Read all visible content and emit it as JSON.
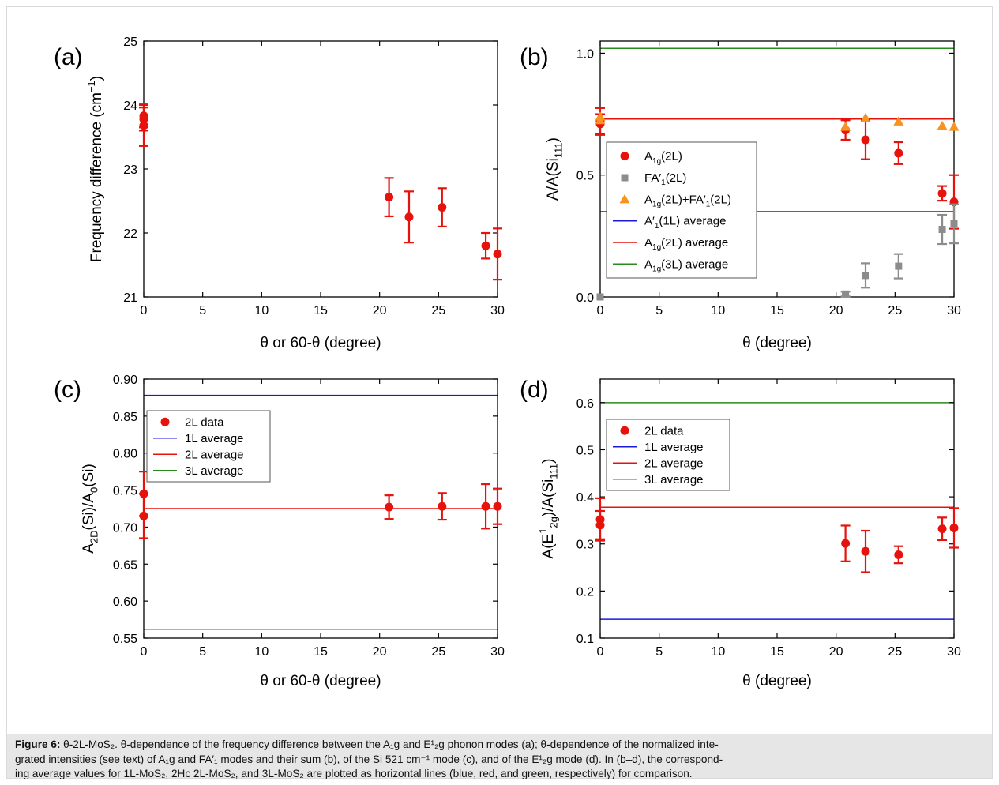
{
  "caption": {
    "label": "Figure 6:",
    "line1": " θ-2L-MoS₂. θ-dependence of the frequency difference between the A₁g and E¹₂g phonon modes (a); θ-dependence of the normalized inte-",
    "line2": "grated intensities (see text) of A₁g and FA′₁ modes and their sum (b), of the Si 521 cm⁻¹ mode (c), and of the E¹₂g mode (d). In (b–d), the correspond-",
    "line3": "ing average values for 1L-MoS₂, 2Hc 2L-MoS₂, and 3L-MoS₂ are plotted as horizontal lines (blue, red, and green, respectively) for comparison."
  },
  "colors": {
    "red": "#e8120c",
    "gray": "#8c8c8c",
    "orange": "#f7931e",
    "blue": "#1a1adc",
    "green": "#2a8a1e"
  },
  "chart_data": [
    {
      "panel": "(a)",
      "type": "scatter",
      "xlabel": "θ or 60-θ (degree)",
      "ylabel": "Frequency difference (cm⁻¹)",
      "xlim": [
        0,
        30
      ],
      "ylim": [
        21,
        25
      ],
      "xticks": [
        0,
        5,
        10,
        15,
        20,
        25,
        30
      ],
      "yticks": [
        21,
        22,
        23,
        24,
        25
      ],
      "ytick_labels": [
        "21",
        "22",
        "23",
        "24",
        "25"
      ],
      "grid": false,
      "series": [
        {
          "marker": "circle",
          "color": "red",
          "points": [
            {
              "x": 0,
              "y": 23.83,
              "err": 0.18
            },
            {
              "x": 0,
              "y": 23.78,
              "err": 0.18
            },
            {
              "x": 0,
              "y": 23.68,
              "err": 0.32
            },
            {
              "x": 20.8,
              "y": 22.56,
              "err": 0.3
            },
            {
              "x": 22.5,
              "y": 22.25,
              "err": 0.4
            },
            {
              "x": 25.3,
              "y": 22.4,
              "err": 0.3
            },
            {
              "x": 29,
              "y": 21.8,
              "err": 0.2
            },
            {
              "x": 30,
              "y": 21.67,
              "err": 0.4
            }
          ]
        }
      ],
      "hlines": [],
      "legend": []
    },
    {
      "panel": "(b)",
      "type": "scatter",
      "xlabel": "θ (degree)",
      "ylabel": "A/A(Si₁₁₁)",
      "xlim": [
        0,
        30
      ],
      "ylim": [
        0,
        1.05
      ],
      "xticks": [
        0,
        5,
        10,
        15,
        20,
        25,
        30
      ],
      "yticks": [
        0,
        0.5,
        1.0
      ],
      "ytick_labels": [
        "0.0",
        "0.5",
        "1.0"
      ],
      "grid": false,
      "series": [
        {
          "name": "A₁g(2L)",
          "marker": "circle",
          "color": "red",
          "points": [
            {
              "x": 0,
              "y": 0.72,
              "err": 0.055
            },
            {
              "x": 0,
              "y": 0.71,
              "err": 0.04
            },
            {
              "x": 20.8,
              "y": 0.685,
              "err": 0.04
            },
            {
              "x": 22.5,
              "y": 0.645,
              "err": 0.08
            },
            {
              "x": 25.3,
              "y": 0.59,
              "err": 0.045
            },
            {
              "x": 29,
              "y": 0.425,
              "err": 0.03
            },
            {
              "x": 30,
              "y": 0.39,
              "err": 0.11
            }
          ]
        },
        {
          "name": "FA′₁(2L)",
          "marker": "square",
          "color": "gray",
          "points": [
            {
              "x": 0,
              "y": 0.0,
              "err": 0
            },
            {
              "x": 20.8,
              "y": 0.012,
              "err": 0.01
            },
            {
              "x": 22.5,
              "y": 0.088,
              "err": 0.05
            },
            {
              "x": 25.3,
              "y": 0.126,
              "err": 0.05
            },
            {
              "x": 29,
              "y": 0.277,
              "err": 0.06
            },
            {
              "x": 30,
              "y": 0.3,
              "err": 0.08
            }
          ]
        },
        {
          "name": "A₁g(2L)+FA′₁(2L)",
          "marker": "triangle",
          "color": "orange",
          "points": [
            {
              "x": 0,
              "y": 0.74,
              "err": 0
            },
            {
              "x": 0,
              "y": 0.725,
              "err": 0
            },
            {
              "x": 20.8,
              "y": 0.698,
              "err": 0
            },
            {
              "x": 22.5,
              "y": 0.735,
              "err": 0
            },
            {
              "x": 25.3,
              "y": 0.72,
              "err": 0
            },
            {
              "x": 29,
              "y": 0.702,
              "err": 0
            },
            {
              "x": 30,
              "y": 0.698,
              "err": 0
            }
          ]
        }
      ],
      "hlines": [
        {
          "name": "A′₁(1L) average",
          "y": 0.35,
          "color": "blue"
        },
        {
          "name": "A₁g(2L) average",
          "y": 0.73,
          "color": "red"
        },
        {
          "name": "A₁g(3L) average",
          "y": 1.02,
          "color": "green"
        }
      ],
      "legend": [
        {
          "text": "A₁g(2L)",
          "kind": "circle",
          "color": "red"
        },
        {
          "text": "FA′₁(2L)",
          "kind": "square",
          "color": "gray"
        },
        {
          "text": "A₁g(2L)+FA′₁(2L)",
          "kind": "triangle",
          "color": "orange"
        },
        {
          "text": "A′₁(1L) average",
          "kind": "line",
          "color": "blue"
        },
        {
          "text": "A₁g(2L) average",
          "kind": "line",
          "color": "red"
        },
        {
          "text": "A₁g(3L) average",
          "kind": "line",
          "color": "green"
        }
      ]
    },
    {
      "panel": "(c)",
      "type": "scatter",
      "xlabel": "θ or 60-θ (degree)",
      "ylabel": "A₂D(Si)/A₀(Si)",
      "xlim": [
        0,
        30
      ],
      "ylim": [
        0.55,
        0.9
      ],
      "xticks": [
        0,
        5,
        10,
        15,
        20,
        25,
        30
      ],
      "yticks": [
        0.55,
        0.6,
        0.65,
        0.7,
        0.75,
        0.8,
        0.85,
        0.9
      ],
      "ytick_labels": [
        "0.55",
        "0.60",
        "0.65",
        "0.70",
        "0.75",
        "0.80",
        "0.85",
        "0.90"
      ],
      "grid": false,
      "series": [
        {
          "name": "2L data",
          "marker": "circle",
          "color": "red",
          "points": [
            {
              "x": 0,
              "y": 0.745,
              "err": 0.03
            },
            {
              "x": 0,
              "y": 0.715,
              "err": 0.03
            },
            {
              "x": 20.8,
              "y": 0.727,
              "err": 0.016
            },
            {
              "x": 25.3,
              "y": 0.728,
              "err": 0.018
            },
            {
              "x": 29,
              "y": 0.728,
              "err": 0.03
            },
            {
              "x": 30,
              "y": 0.728,
              "err": 0.024
            }
          ]
        }
      ],
      "hlines": [
        {
          "name": "1L average",
          "y": 0.878,
          "color": "blue"
        },
        {
          "name": "2L average",
          "y": 0.725,
          "color": "red"
        },
        {
          "name": "3L average",
          "y": 0.562,
          "color": "green"
        }
      ],
      "legend": [
        {
          "text": "2L data",
          "kind": "circle",
          "color": "red"
        },
        {
          "text": "1L average",
          "kind": "line",
          "color": "blue"
        },
        {
          "text": "2L average",
          "kind": "line",
          "color": "red"
        },
        {
          "text": "3L average",
          "kind": "line",
          "color": "green"
        }
      ]
    },
    {
      "panel": "(d)",
      "type": "scatter",
      "xlabel": "θ (degree)",
      "ylabel": "A(E¹₂g)/A(Si₁₁₁)",
      "xlim": [
        0,
        30
      ],
      "ylim": [
        0.1,
        0.65
      ],
      "xticks": [
        0,
        5,
        10,
        15,
        20,
        25,
        30
      ],
      "yticks": [
        0.1,
        0.2,
        0.3,
        0.4,
        0.5,
        0.6
      ],
      "ytick_labels": [
        "0.1",
        "0.2",
        "0.3",
        "0.4",
        "0.5",
        "0.6"
      ],
      "grid": false,
      "series": [
        {
          "name": "2L data",
          "marker": "circle",
          "color": "red",
          "points": [
            {
              "x": 0,
              "y": 0.352,
              "err": 0.045
            },
            {
              "x": 0,
              "y": 0.34,
              "err": 0.03
            },
            {
              "x": 20.8,
              "y": 0.301,
              "err": 0.038
            },
            {
              "x": 22.5,
              "y": 0.284,
              "err": 0.044
            },
            {
              "x": 25.3,
              "y": 0.277,
              "err": 0.018
            },
            {
              "x": 29,
              "y": 0.332,
              "err": 0.024
            },
            {
              "x": 30,
              "y": 0.334,
              "err": 0.042
            }
          ]
        }
      ],
      "hlines": [
        {
          "name": "1L average",
          "y": 0.14,
          "color": "blue"
        },
        {
          "name": "2L average",
          "y": 0.378,
          "color": "red"
        },
        {
          "name": "3L average",
          "y": 0.6,
          "color": "green"
        }
      ],
      "legend": [
        {
          "text": "2L data",
          "kind": "circle",
          "color": "red"
        },
        {
          "text": "1L average",
          "kind": "line",
          "color": "blue"
        },
        {
          "text": "2L average",
          "kind": "line",
          "color": "red"
        },
        {
          "text": "3L average",
          "kind": "line",
          "color": "green"
        }
      ]
    }
  ]
}
